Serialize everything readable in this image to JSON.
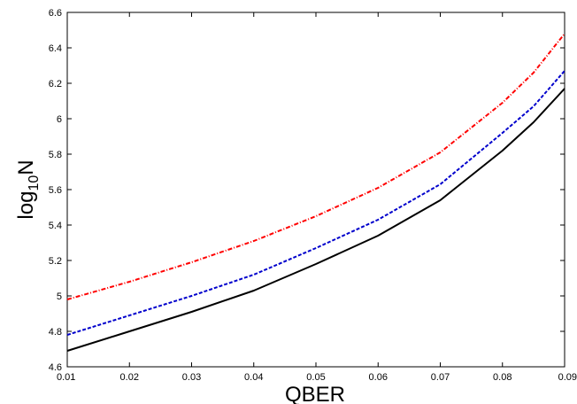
{
  "chart_data": {
    "type": "line",
    "xlabel": "QBER",
    "ylabel_main": "log",
    "ylabel_sub": "10",
    "ylabel_tail": "N",
    "xlim": [
      0.01,
      0.09
    ],
    "ylim": [
      4.6,
      6.6
    ],
    "xticks": [
      "0.01",
      "0.02",
      "0.03",
      "0.04",
      "0.05",
      "0.06",
      "0.07",
      "0.08",
      "0.09"
    ],
    "yticks": [
      "4.6",
      "4.8",
      "5",
      "5.2",
      "5.4",
      "5.6",
      "5.8",
      "6",
      "6.2",
      "6.4",
      "6.6"
    ],
    "x": [
      0.01,
      0.02,
      0.03,
      0.04,
      0.05,
      0.06,
      0.07,
      0.08,
      0.085,
      0.09
    ],
    "series": [
      {
        "color": "#000000",
        "dash": "solid",
        "values": [
          4.69,
          4.8,
          4.91,
          5.03,
          5.18,
          5.34,
          5.54,
          5.82,
          5.98,
          6.17
        ]
      },
      {
        "color": "#0000cc",
        "dash": "dashed",
        "values": [
          4.78,
          4.89,
          5.0,
          5.12,
          5.27,
          5.43,
          5.63,
          5.92,
          6.07,
          6.27
        ]
      },
      {
        "color": "#ff0000",
        "dash": "dashdot",
        "values": [
          4.98,
          5.08,
          5.19,
          5.31,
          5.45,
          5.61,
          5.81,
          6.09,
          6.26,
          6.48
        ]
      }
    ],
    "grid": false,
    "legend": "none"
  }
}
